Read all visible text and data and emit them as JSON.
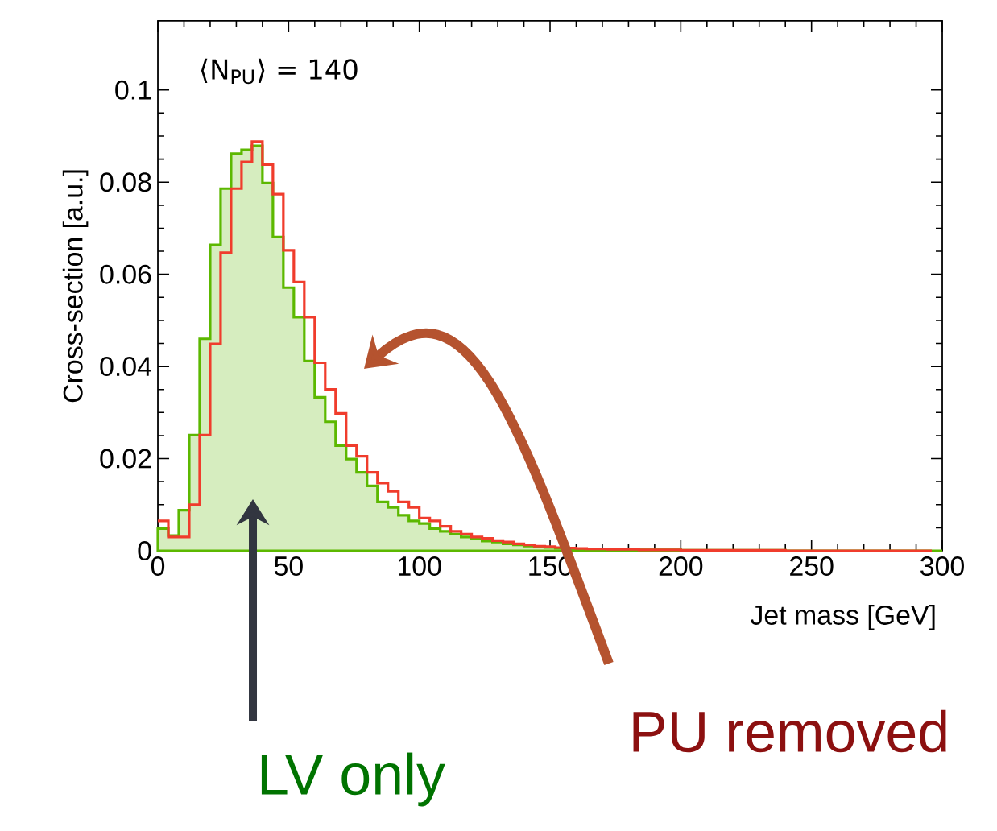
{
  "chart_data": {
    "type": "histogram",
    "xlabel": "Jet mass [GeV]",
    "ylabel": "Cross-section [a.u.]",
    "annotations": [
      "⟨N$_{PU}$⟩ = 140",
      "LV only",
      "PU removed"
    ],
    "bins": [
      0,
      4,
      8,
      12,
      16,
      20,
      24,
      28,
      32,
      36,
      40,
      44,
      48,
      52,
      56,
      60,
      64,
      68,
      72,
      76,
      80,
      84,
      88,
      92,
      96,
      100,
      104,
      108,
      112,
      116,
      120,
      124,
      128,
      132,
      136,
      140,
      144,
      148,
      152,
      156,
      160,
      164,
      168,
      172,
      176,
      180,
      184,
      188,
      192,
      196,
      200,
      204,
      208,
      212,
      216,
      220,
      224,
      228,
      232,
      236,
      240,
      244,
      248,
      252,
      256,
      260,
      264,
      268,
      272,
      276,
      280,
      284,
      288,
      292,
      296,
      300
    ],
    "series": [
      {
        "color": "#5cb800",
        "values": [
          0.0048,
          0.0033,
          0.0088,
          0.0251,
          0.046,
          0.0664,
          0.0786,
          0.0862,
          0.087,
          0.0879,
          0.0798,
          0.0681,
          0.0571,
          0.0507,
          0.0412,
          0.0333,
          0.028,
          0.0228,
          0.0199,
          0.017,
          0.0141,
          0.0106,
          0.0094,
          0.0077,
          0.0065,
          0.0059,
          0.0048,
          0.0042,
          0.0036,
          0.003,
          0.0027,
          0.0021,
          0.0019,
          0.0015,
          0.0013,
          0.001,
          0.0009,
          0.0007,
          0.0006,
          0.0005,
          0.0004,
          0.0004,
          0.0003,
          0.0003,
          0.0003,
          0.0002,
          0.0002,
          0.0002,
          0.0002,
          0.0002,
          0.0001,
          0.0001,
          0.0001,
          0.0001,
          0.0001,
          0.0001,
          0.0001,
          0.0001,
          0.0001,
          0.0001,
          0,
          0,
          0,
          0,
          0,
          0,
          0,
          0,
          0,
          0,
          0,
          0,
          0,
          0,
          0
        ]
      },
      {
        "type": "step",
        "color": "#f03c2c",
        "x": [
          0,
          4,
          8,
          12,
          16,
          20,
          24,
          28,
          32,
          36,
          40,
          44,
          48,
          52,
          56,
          60,
          64,
          68,
          72,
          76,
          80,
          84,
          88,
          92,
          96,
          100,
          104,
          108,
          112,
          116,
          120,
          124,
          128,
          132,
          136,
          140,
          144,
          148,
          152,
          156,
          160,
          164,
          168,
          172,
          176,
          180,
          184,
          188,
          192,
          196,
          200,
          204,
          208,
          212,
          216,
          220,
          224,
          228,
          232,
          236,
          240,
          244,
          248,
          252,
          256,
          260,
          264,
          268,
          272,
          276,
          280,
          284,
          288,
          292,
          296
        ],
        "values": [
          0.0065,
          0.003,
          0.003,
          0.01,
          0.0251,
          0.0449,
          0.0647,
          0.0786,
          0.0844,
          0.0888,
          0.0838,
          0.0774,
          0.0652,
          0.0583,
          0.0507,
          0.0408,
          0.035,
          0.0298,
          0.0228,
          0.0205,
          0.017,
          0.0147,
          0.0129,
          0.0106,
          0.0094,
          0.0071,
          0.0065,
          0.0053,
          0.0042,
          0.0036,
          0.003,
          0.0027,
          0.0022,
          0.0019,
          0.0015,
          0.0013,
          0.001,
          0.0009,
          0.0007,
          0.0006,
          0.0005,
          0.0004,
          0.0004,
          0.0003,
          0.0003,
          0.0003,
          0.0002,
          0.0002,
          0.0002,
          0.0002,
          0.0001,
          0.0001,
          0.0001,
          0.0001,
          0.0001,
          0.0001,
          0.0001,
          0.0001,
          0.0001,
          0.0001,
          0,
          0,
          0,
          0,
          0,
          0,
          0,
          0,
          0,
          0,
          0,
          0,
          0,
          0,
          0
        ]
      }
    ],
    "xlim": [
      0,
      300
    ],
    "ylim": [
      0,
      0.115
    ],
    "xticks": [
      0,
      50,
      100,
      150,
      200,
      250,
      300
    ],
    "yticks": [
      0,
      0.02,
      0.04,
      0.06,
      0.08,
      0.1
    ]
  }
}
